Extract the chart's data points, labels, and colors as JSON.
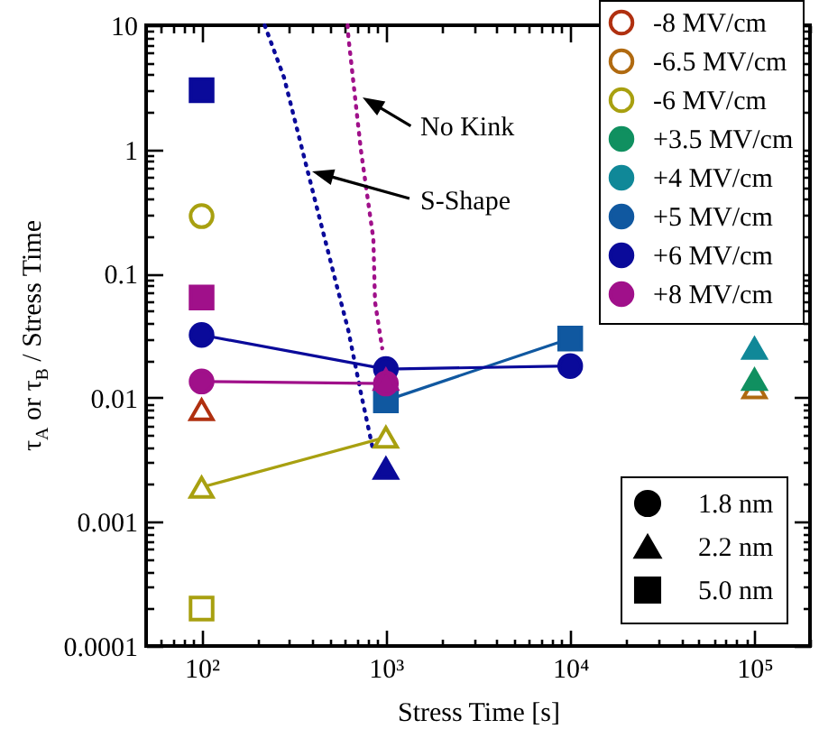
{
  "chart_data": {
    "type": "scatter",
    "xlabel": "Stress Time [s]",
    "ylabel": "τ$_{A}$ or τ$_{B}$ / Stress Time",
    "log": "xy",
    "legend": "top right",
    "xlim": [
      50,
      200000
    ],
    "ylim": [
      0.0001,
      10
    ],
    "xticks": [
      {
        "value": 60,
        "label": null
      },
      {
        "value": 70,
        "label": null
      },
      {
        "value": 80,
        "label": null
      },
      {
        "value": 90,
        "label": null
      },
      {
        "value": 100,
        "label": "10²"
      },
      {
        "value": 200,
        "label": null
      },
      {
        "value": 300,
        "label": null
      },
      {
        "value": 400,
        "label": null
      },
      {
        "value": 500,
        "label": null
      },
      {
        "value": 600,
        "label": null
      },
      {
        "value": 700,
        "label": null
      },
      {
        "value": 800,
        "label": null
      },
      {
        "value": 900,
        "label": null
      },
      {
        "value": 1000,
        "label": "10³"
      },
      {
        "value": 2000,
        "label": null
      },
      {
        "value": 3000,
        "label": null
      },
      {
        "value": 4000,
        "label": null
      },
      {
        "value": 5000,
        "label": null
      },
      {
        "value": 6000,
        "label": null
      },
      {
        "value": 7000,
        "label": null
      },
      {
        "value": 8000,
        "label": null
      },
      {
        "value": 9000,
        "label": null
      },
      {
        "value": 10000,
        "label": "10⁴"
      },
      {
        "value": 20000,
        "label": null
      },
      {
        "value": 30000,
        "label": null
      },
      {
        "value": 40000,
        "label": null
      },
      {
        "value": 50000,
        "label": null
      },
      {
        "value": 60000,
        "label": null
      },
      {
        "value": 70000,
        "label": null
      },
      {
        "value": 80000,
        "label": null
      },
      {
        "value": 90000,
        "label": null
      },
      {
        "value": 100000,
        "label": "10⁵"
      },
      {
        "value": 200000,
        "label": null
      }
    ],
    "yticks": [
      0.0001,
      {
        "value": 0.0002,
        "label": null
      },
      {
        "value": 0.0003,
        "label": null
      },
      {
        "value": 0.0004,
        "label": null
      },
      {
        "value": 0.0005,
        "label": null
      },
      {
        "value": 0.0006,
        "label": null
      },
      {
        "value": 0.0007,
        "label": null
      },
      {
        "value": 0.0008,
        "label": null
      },
      {
        "value": 0.0009,
        "label": null
      },
      0.001,
      {
        "value": 0.002,
        "label": null
      },
      {
        "value": 0.003,
        "label": null
      },
      {
        "value": 0.004,
        "label": null
      },
      {
        "value": 0.005,
        "label": null
      },
      {
        "value": 0.006,
        "label": null
      },
      {
        "value": 0.007,
        "label": null
      },
      {
        "value": 0.008,
        "label": null
      },
      {
        "value": 0.009,
        "label": null
      },
      0.01,
      {
        "value": 0.02,
        "label": null
      },
      {
        "value": 0.03,
        "label": null
      },
      {
        "value": 0.04,
        "label": null
      },
      {
        "value": 0.05,
        "label": null
      },
      {
        "value": 0.06,
        "label": null
      },
      {
        "value": 0.07,
        "label": null
      },
      {
        "value": 0.08,
        "label": null
      },
      {
        "value": 0.09,
        "label": null
      },
      0.1,
      {
        "value": 0.2,
        "label": null
      },
      {
        "value": 0.3,
        "label": null
      },
      {
        "value": 0.4,
        "label": null
      },
      {
        "value": 0.5,
        "label": null
      },
      {
        "value": 0.6,
        "label": null
      },
      {
        "value": 0.7,
        "label": null
      },
      {
        "value": 0.8,
        "label": null
      },
      {
        "value": 0.9,
        "label": null
      },
      1,
      {
        "value": 2,
        "label": null
      },
      {
        "value": 3,
        "label": null
      },
      {
        "value": 4,
        "label": null
      },
      {
        "value": 5,
        "label": null
      },
      {
        "value": 6,
        "label": null
      },
      {
        "value": 7,
        "label": null
      },
      {
        "value": 8,
        "label": null
      },
      {
        "value": 9,
        "label": null
      },
      10
    ],
    "annotations": [
      "No Kink",
      "S-Shape"
    ],
    "series": [
      {
        "type": "line",
        "color": "#0a0a9a",
        "marker": "none",
        "line_style": "dotted",
        "x": [
          220,
          280,
          418,
          547,
          625,
          731,
          855
        ],
        "values": [
          10,
          3.8,
          0.36,
          0.075,
          0.035,
          0.011,
          0.0037
        ]
      },
      {
        "type": "line",
        "color": "#a0108a",
        "marker": "none",
        "line_style": "dotted",
        "x": [
          620,
          625,
          731,
          855,
          873,
          955
        ],
        "values": [
          10,
          8.2,
          1,
          0.19,
          0.059,
          0.025
        ]
      },
      {
        "name": "-8 MV/cm",
        "color": "#b03010",
        "colors": [
          "#ffffff"
        ],
        "marker": "triangle",
        "x": [
          100
        ],
        "values": [
          0.008
        ]
      },
      {
        "name": "-6.5 MV/cm",
        "color": "#b06a10",
        "colors": [
          "#ffffff"
        ],
        "marker": "triangle",
        "x": [
          100000
        ],
        "values": [
          0.012
        ]
      },
      {
        "name": "-6 MV/cm",
        "color": "#a8a010",
        "colors": [
          "#ffffff"
        ],
        "marker": "circle",
        "x": [
          100
        ],
        "values": [
          0.29
        ]
      },
      {
        "type": "line",
        "color": "#a8a010",
        "colors": [
          "#ffffff",
          "#ffffff"
        ],
        "marker": "triangle",
        "line_style": "solid",
        "x": [
          100,
          1000
        ],
        "values": [
          0.0019,
          0.0048
        ]
      },
      {
        "color": "#a8a010",
        "colors": [
          "#ffffff"
        ],
        "marker": "square",
        "x": [
          100
        ],
        "values": [
          0.0002
        ]
      },
      {
        "name": "+3.5 MV/cm",
        "color": "#109060",
        "marker": "triangle",
        "x": [
          100000
        ],
        "values": [
          0.014
        ]
      },
      {
        "name": "+4 MV/cm",
        "color": "#108898",
        "marker": "triangle",
        "x": [
          100000
        ],
        "values": [
          0.025
        ]
      },
      {
        "name": "+5 MV/cm",
        "type": "line",
        "color": "#1058a0",
        "marker": "square",
        "line_style": "solid",
        "x": [
          1000,
          10000
        ],
        "values": [
          0.0095,
          0.03
        ]
      },
      {
        "name": "+6 MV/cm",
        "type": "line",
        "color": "#0a0a9a",
        "marker": "circle",
        "line_style": "solid",
        "x": [
          100,
          1000,
          10000
        ],
        "values": [
          0.032,
          0.017,
          0.018
        ]
      },
      {
        "color": "#0a0a9a",
        "marker": "triangle",
        "x": [
          1000
        ],
        "values": [
          0.0027
        ]
      },
      {
        "color": "#0a0a9a",
        "marker": "square",
        "x": [
          100
        ],
        "values": [
          3
        ]
      },
      {
        "name": "+8 MV/cm",
        "type": "line",
        "color": "#a0108a",
        "marker": "circle",
        "line_style": "solid",
        "x": [
          100,
          1000
        ],
        "values": [
          0.0135,
          0.013
        ]
      },
      {
        "color": "#a0108a",
        "marker": "square",
        "x": [
          100
        ],
        "values": [
          0.064
        ]
      },
      {
        "color": "#a0108a",
        "marker": "triangle",
        "x": [
          1000
        ],
        "values": [
          0.014
        ]
      },
      {
        "name": "1.8 nm",
        "color": "#000000",
        "marker": "circle"
      },
      {
        "name": "2.2 nm",
        "color": "#000000",
        "marker": "triangle"
      },
      {
        "name": "5.0 nm",
        "color": "#000000",
        "marker": "square"
      }
    ]
  }
}
